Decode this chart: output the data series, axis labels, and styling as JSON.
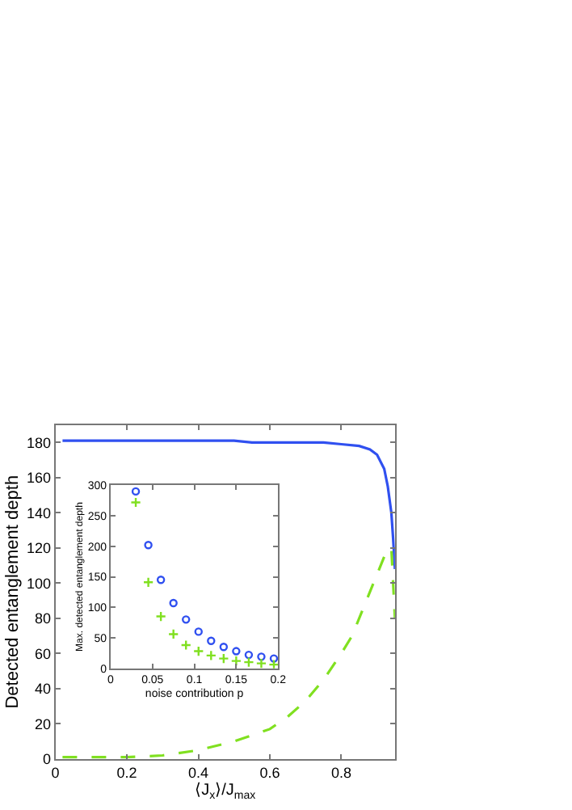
{
  "chart_data": [
    {
      "type": "line",
      "xlabel": "⟨J$_{x}$⟩/J$_{max}$",
      "ylabel": "Detected entanglement depth",
      "xlim": [
        0,
        0.95
      ],
      "ylim": [
        0,
        190
      ],
      "xticks": [
        0,
        0.2,
        0.4,
        0.6,
        0.8
      ],
      "yticks": [
        0,
        20,
        40,
        60,
        80,
        100,
        120,
        140,
        160,
        180
      ],
      "series": [
        {
          "color": "#3050f0",
          "line_style": "solid",
          "x": [
            0.02,
            0.1,
            0.2,
            0.3,
            0.4,
            0.5,
            0.55,
            0.6,
            0.7,
            0.75,
            0.8,
            0.85,
            0.88,
            0.9,
            0.92,
            0.93,
            0.94,
            0.945,
            0.95
          ],
          "values": [
            181,
            181,
            181,
            181,
            181,
            181,
            180,
            180,
            180,
            180,
            179,
            178,
            176,
            173,
            165,
            155,
            140,
            125,
            108
          ]
        },
        {
          "color": "#80e020",
          "line_style": "dashed",
          "x": [
            0.02,
            0.1,
            0.2,
            0.3,
            0.4,
            0.5,
            0.6,
            0.65,
            0.7,
            0.75,
            0.8,
            0.83,
            0.86,
            0.89,
            0.92,
            0.94,
            0.95
          ],
          "values": [
            1,
            1,
            1,
            2,
            5,
            10,
            17,
            24,
            33,
            45,
            60,
            70,
            85,
            100,
            115,
            120,
            80
          ]
        }
      ]
    },
    {
      "type": "scatter",
      "xlabel": "noise contribution p",
      "ylabel": "Max. detected entanglement depth",
      "xlim": [
        0,
        0.2
      ],
      "ylim": [
        0,
        300
      ],
      "xticks": [
        0,
        0.05,
        0.1,
        0.15,
        0.2
      ],
      "yticks": [
        0,
        50,
        100,
        150,
        200,
        250,
        300
      ],
      "x": [
        0.03,
        0.045,
        0.06,
        0.075,
        0.09,
        0.105,
        0.12,
        0.135,
        0.15,
        0.165,
        0.18,
        0.195
      ],
      "series": [
        {
          "color": "#3050f0",
          "marker": "circle",
          "values": [
            290,
            202,
            145,
            107,
            80,
            60,
            45,
            35,
            28,
            22,
            19,
            16
          ]
        },
        {
          "color": "#80e020",
          "marker": "cross",
          "values": [
            272,
            141,
            85,
            56,
            38,
            28,
            21,
            16,
            12,
            10,
            8,
            6
          ]
        }
      ]
    }
  ]
}
